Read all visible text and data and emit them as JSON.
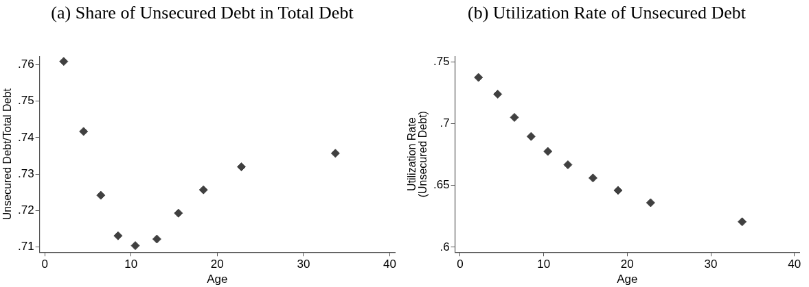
{
  "chart_data": [
    {
      "type": "scatter",
      "title": "(a) Share of Unsecured Debt in Total Debt",
      "xlabel": "Age",
      "ylabel": "Unsecured Debt/Total Debt",
      "marker": "diamond",
      "grid": false,
      "legend": false,
      "x": [
        2.2,
        4.5,
        6.5,
        8.5,
        10.5,
        13.0,
        15.5,
        18.4,
        22.8,
        33.7
      ],
      "series": [
        {
          "color": "#404040",
          "values": [
            0.7609,
            0.7417,
            0.7242,
            0.7131,
            0.7104,
            0.7122,
            0.7193,
            0.7257,
            0.732,
            0.7357
          ]
        }
      ],
      "xlim": [
        -0.6,
        40.6
      ],
      "xticks": [
        0,
        10,
        20,
        30,
        40
      ],
      "ylim": [
        0.7086,
        0.7623
      ],
      "yticks": [
        {
          "value": 0.71,
          "label": ".71"
        },
        {
          "value": 0.72,
          "label": ".72"
        },
        {
          "value": 0.73,
          "label": ".73"
        },
        {
          "value": 0.74,
          "label": ".74"
        },
        {
          "value": 0.75,
          "label": ".75"
        },
        {
          "value": 0.76,
          "label": ".76"
        }
      ]
    },
    {
      "type": "scatter",
      "title": "(b) Utilization Rate of Unsecured Debt",
      "xlabel": "Age",
      "ylabel": "Utilization Rate\n(Unsecured Debt)",
      "marker": "diamond",
      "grid": false,
      "legend": false,
      "x": [
        2.2,
        4.5,
        6.5,
        8.5,
        10.5,
        12.9,
        15.9,
        18.9,
        22.8,
        33.75
      ],
      "series": [
        {
          "color": "#404040",
          "values": [
            0.7373,
            0.7238,
            0.705,
            0.6896,
            0.6775,
            0.6667,
            0.656,
            0.646,
            0.636,
            0.6206
          ]
        }
      ],
      "xlim": [
        -0.6,
        40.6
      ],
      "xticks": [
        0,
        10,
        20,
        30,
        40
      ],
      "ylim": [
        0.596,
        0.7544
      ],
      "yticks": [
        {
          "value": 0.6,
          "label": ".6"
        },
        {
          "value": 0.65,
          "label": ".65"
        },
        {
          "value": 0.7,
          "label": ".7"
        },
        {
          "value": 0.75,
          "label": ".75"
        }
      ]
    }
  ]
}
